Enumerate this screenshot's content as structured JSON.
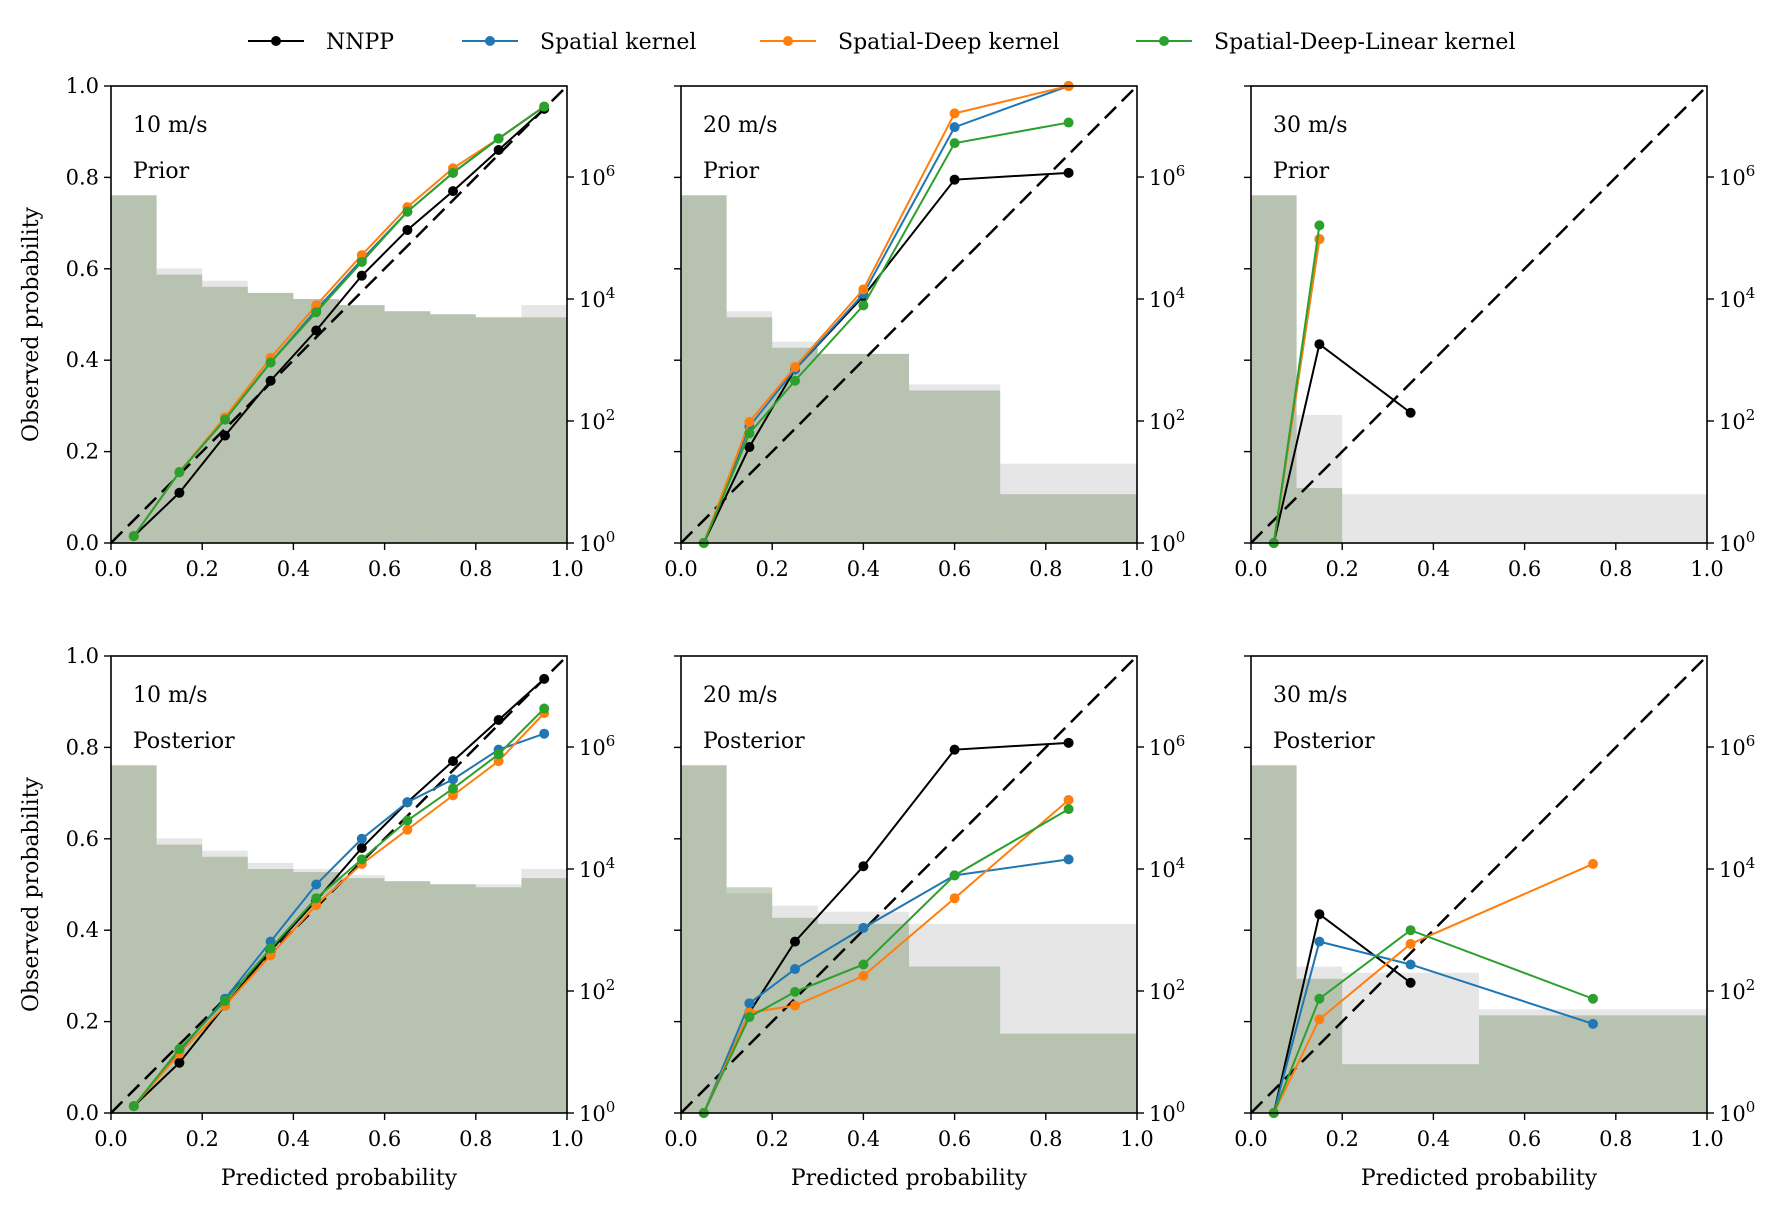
{
  "legend": {
    "entries": [
      {
        "label": "NNPP",
        "color": "#000000"
      },
      {
        "label": "Spatial kernel",
        "color": "#1f77b4"
      },
      {
        "label": "Spatial-Deep kernel",
        "color": "#ff7f0e"
      },
      {
        "label": "Spatial-Deep-Linear kernel",
        "color": "#2ca02c"
      }
    ]
  },
  "axes": {
    "xlabel": "Predicted probability",
    "ylabel": "Observed probability",
    "xticks": [
      "0.0",
      "0.2",
      "0.4",
      "0.6",
      "0.8",
      "1.0"
    ],
    "yticks": [
      "0.0",
      "0.2",
      "0.4",
      "0.6",
      "0.8",
      "1.0"
    ],
    "right_ticks": [
      "10",
      "10",
      "10",
      "10"
    ],
    "right_exps": [
      "0",
      "2",
      "4",
      "6"
    ]
  },
  "chart_data": [
    {
      "type": "line",
      "speed": "10 m/s",
      "stage": "Prior",
      "xlim": [
        0,
        1
      ],
      "ylim": [
        0,
        1
      ],
      "series": [
        {
          "name": "NNPP",
          "color": "#000000",
          "points": [
            [
              0.05,
              0.015
            ],
            [
              0.15,
              0.11
            ],
            [
              0.25,
              0.235
            ],
            [
              0.35,
              0.355
            ],
            [
              0.45,
              0.465
            ],
            [
              0.55,
              0.585
            ],
            [
              0.65,
              0.685
            ],
            [
              0.75,
              0.77
            ],
            [
              0.85,
              0.86
            ],
            [
              0.95,
              0.95
            ]
          ]
        },
        {
          "name": "Spatial kernel",
          "color": "#1f77b4",
          "points": [
            [
              0.05,
              0.015
            ],
            [
              0.15,
              0.155
            ],
            [
              0.25,
              0.27
            ],
            [
              0.35,
              0.395
            ],
            [
              0.45,
              0.51
            ],
            [
              0.55,
              0.62
            ],
            [
              0.65,
              0.725
            ],
            [
              0.75,
              0.81
            ],
            [
              0.85,
              0.885
            ],
            [
              0.95,
              0.955
            ]
          ]
        },
        {
          "name": "Spatial-Deep kernel",
          "color": "#ff7f0e",
          "points": [
            [
              0.05,
              0.015
            ],
            [
              0.15,
              0.155
            ],
            [
              0.25,
              0.275
            ],
            [
              0.35,
              0.405
            ],
            [
              0.45,
              0.52
            ],
            [
              0.55,
              0.63
            ],
            [
              0.65,
              0.735
            ],
            [
              0.75,
              0.82
            ],
            [
              0.85,
              0.885
            ],
            [
              0.95,
              0.955
            ]
          ]
        },
        {
          "name": "Spatial-Deep-Linear kernel",
          "color": "#2ca02c",
          "points": [
            [
              0.05,
              0.015
            ],
            [
              0.15,
              0.155
            ],
            [
              0.25,
              0.27
            ],
            [
              0.35,
              0.395
            ],
            [
              0.45,
              0.505
            ],
            [
              0.55,
              0.615
            ],
            [
              0.65,
              0.725
            ],
            [
              0.75,
              0.81
            ],
            [
              0.85,
              0.885
            ],
            [
              0.95,
              0.955
            ]
          ]
        }
      ],
      "histogram_log10": {
        "edges": [
          0,
          0.1,
          0.2,
          0.3,
          0.4,
          0.5,
          0.6,
          0.7,
          0.8,
          0.9,
          1.0
        ],
        "layers": [
          [
            5.7,
            4.5,
            4.3,
            4.1,
            4.0,
            3.9,
            3.8,
            3.75,
            3.7,
            3.9
          ],
          [
            5.7,
            4.4,
            4.2,
            4.1,
            4.0,
            3.9,
            3.8,
            3.75,
            3.7,
            3.7
          ]
        ]
      }
    },
    {
      "type": "line",
      "speed": "20 m/s",
      "stage": "Prior",
      "xlim": [
        0,
        1
      ],
      "ylim": [
        0,
        1
      ],
      "series": [
        {
          "name": "NNPP",
          "color": "#000000",
          "points": [
            [
              0.05,
              0.0
            ],
            [
              0.15,
              0.21
            ],
            [
              0.25,
              0.38
            ],
            [
              0.4,
              0.54
            ],
            [
              0.6,
              0.795
            ],
            [
              0.85,
              0.81
            ]
          ]
        },
        {
          "name": "Spatial kernel",
          "color": "#1f77b4",
          "points": [
            [
              0.05,
              0.0
            ],
            [
              0.15,
              0.255
            ],
            [
              0.25,
              0.38
            ],
            [
              0.4,
              0.545
            ],
            [
              0.6,
              0.91
            ],
            [
              0.85,
              1.0
            ]
          ]
        },
        {
          "name": "Spatial-Deep kernel",
          "color": "#ff7f0e",
          "points": [
            [
              0.05,
              0.0
            ],
            [
              0.15,
              0.265
            ],
            [
              0.25,
              0.385
            ],
            [
              0.4,
              0.555
            ],
            [
              0.6,
              0.94
            ],
            [
              0.85,
              1.0
            ]
          ]
        },
        {
          "name": "Spatial-Deep-Linear kernel",
          "color": "#2ca02c",
          "points": [
            [
              0.05,
              0.0
            ],
            [
              0.15,
              0.24
            ],
            [
              0.25,
              0.355
            ],
            [
              0.4,
              0.52
            ],
            [
              0.6,
              0.875
            ],
            [
              0.85,
              0.92
            ]
          ]
        }
      ],
      "histogram_log10": {
        "edges": [
          0,
          0.1,
          0.2,
          0.3,
          0.5,
          0.7,
          1.0
        ],
        "layers": [
          [
            5.7,
            3.8,
            3.3,
            3.1,
            2.6,
            1.3
          ],
          [
            5.7,
            3.7,
            3.2,
            3.1,
            2.5,
            0.8
          ]
        ]
      }
    },
    {
      "type": "line",
      "speed": "30 m/s",
      "stage": "Prior",
      "xlim": [
        0,
        1
      ],
      "ylim": [
        0,
        1
      ],
      "series": [
        {
          "name": "NNPP",
          "color": "#000000",
          "points": [
            [
              0.05,
              0.0
            ],
            [
              0.15,
              0.435
            ],
            [
              0.35,
              0.285
            ]
          ]
        },
        {
          "name": "Spatial kernel",
          "color": "#1f77b4",
          "points": [
            [
              0.05,
              0.0
            ],
            [
              0.15,
              0.665
            ]
          ]
        },
        {
          "name": "Spatial-Deep kernel",
          "color": "#ff7f0e",
          "points": [
            [
              0.05,
              0.0
            ],
            [
              0.15,
              0.665
            ]
          ]
        },
        {
          "name": "Spatial-Deep-Linear kernel",
          "color": "#2ca02c",
          "points": [
            [
              0.05,
              0.0
            ],
            [
              0.15,
              0.695
            ]
          ]
        }
      ],
      "histogram_log10": {
        "edges": [
          0,
          0.1,
          0.2,
          0.5,
          1.0
        ],
        "layers": [
          [
            5.7,
            2.1,
            0.8,
            0.8
          ],
          [
            5.7,
            0.9,
            0,
            0
          ]
        ]
      }
    },
    {
      "type": "line",
      "speed": "10 m/s",
      "stage": "Posterior",
      "xlim": [
        0,
        1
      ],
      "ylim": [
        0,
        1
      ],
      "series": [
        {
          "name": "NNPP",
          "color": "#000000",
          "points": [
            [
              0.05,
              0.015
            ],
            [
              0.15,
              0.11
            ],
            [
              0.25,
              0.235
            ],
            [
              0.35,
              0.355
            ],
            [
              0.45,
              0.465
            ],
            [
              0.55,
              0.58
            ],
            [
              0.65,
              0.68
            ],
            [
              0.75,
              0.77
            ],
            [
              0.85,
              0.86
            ],
            [
              0.95,
              0.95
            ]
          ]
        },
        {
          "name": "Spatial kernel",
          "color": "#1f77b4",
          "points": [
            [
              0.05,
              0.015
            ],
            [
              0.15,
              0.135
            ],
            [
              0.25,
              0.25
            ],
            [
              0.35,
              0.375
            ],
            [
              0.45,
              0.5
            ],
            [
              0.55,
              0.6
            ],
            [
              0.65,
              0.68
            ],
            [
              0.75,
              0.73
            ],
            [
              0.85,
              0.795
            ],
            [
              0.95,
              0.83
            ]
          ]
        },
        {
          "name": "Spatial-Deep kernel",
          "color": "#ff7f0e",
          "points": [
            [
              0.05,
              0.015
            ],
            [
              0.15,
              0.13
            ],
            [
              0.25,
              0.235
            ],
            [
              0.35,
              0.345
            ],
            [
              0.45,
              0.455
            ],
            [
              0.55,
              0.545
            ],
            [
              0.65,
              0.62
            ],
            [
              0.75,
              0.695
            ],
            [
              0.85,
              0.77
            ],
            [
              0.95,
              0.875
            ]
          ]
        },
        {
          "name": "Spatial-Deep-Linear kernel",
          "color": "#2ca02c",
          "points": [
            [
              0.05,
              0.015
            ],
            [
              0.15,
              0.14
            ],
            [
              0.25,
              0.245
            ],
            [
              0.35,
              0.36
            ],
            [
              0.45,
              0.47
            ],
            [
              0.55,
              0.555
            ],
            [
              0.65,
              0.64
            ],
            [
              0.75,
              0.71
            ],
            [
              0.85,
              0.785
            ],
            [
              0.95,
              0.885
            ]
          ]
        }
      ],
      "histogram_log10": {
        "edges": [
          0,
          0.1,
          0.2,
          0.3,
          0.4,
          0.5,
          0.6,
          0.7,
          0.8,
          0.9,
          1.0
        ],
        "layers": [
          [
            5.7,
            4.5,
            4.3,
            4.1,
            4.0,
            3.9,
            3.8,
            3.75,
            3.75,
            4.0
          ],
          [
            5.7,
            4.4,
            4.2,
            4.0,
            3.95,
            3.85,
            3.8,
            3.75,
            3.7,
            3.85
          ]
        ]
      }
    },
    {
      "type": "line",
      "speed": "20 m/s",
      "stage": "Posterior",
      "xlim": [
        0,
        1
      ],
      "ylim": [
        0,
        1
      ],
      "series": [
        {
          "name": "NNPP",
          "color": "#000000",
          "points": [
            [
              0.05,
              0.0
            ],
            [
              0.15,
              0.22
            ],
            [
              0.25,
              0.375
            ],
            [
              0.4,
              0.54
            ],
            [
              0.6,
              0.795
            ],
            [
              0.85,
              0.81
            ]
          ]
        },
        {
          "name": "Spatial kernel",
          "color": "#1f77b4",
          "points": [
            [
              0.05,
              0.0
            ],
            [
              0.15,
              0.24
            ],
            [
              0.25,
              0.315
            ],
            [
              0.4,
              0.405
            ],
            [
              0.6,
              0.52
            ],
            [
              0.85,
              0.555
            ]
          ]
        },
        {
          "name": "Spatial-Deep kernel",
          "color": "#ff7f0e",
          "points": [
            [
              0.05,
              0.0
            ],
            [
              0.15,
              0.22
            ],
            [
              0.25,
              0.235
            ],
            [
              0.4,
              0.3
            ],
            [
              0.6,
              0.47
            ],
            [
              0.85,
              0.685
            ]
          ]
        },
        {
          "name": "Spatial-Deep-Linear kernel",
          "color": "#2ca02c",
          "points": [
            [
              0.05,
              0.0
            ],
            [
              0.15,
              0.21
            ],
            [
              0.25,
              0.265
            ],
            [
              0.4,
              0.325
            ],
            [
              0.6,
              0.52
            ],
            [
              0.85,
              0.665
            ]
          ]
        }
      ],
      "histogram_log10": {
        "edges": [
          0,
          0.1,
          0.2,
          0.3,
          0.5,
          0.7,
          1.0
        ],
        "layers": [
          [
            5.7,
            3.6,
            3.4,
            3.3,
            3.1,
            3.1
          ],
          [
            5.7,
            3.7,
            3.2,
            3.1,
            2.4,
            1.3
          ]
        ]
      }
    },
    {
      "type": "line",
      "speed": "30 m/s",
      "stage": "Posterior",
      "xlim": [
        0,
        1
      ],
      "ylim": [
        0,
        1
      ],
      "series": [
        {
          "name": "NNPP",
          "color": "#000000",
          "points": [
            [
              0.05,
              0.0
            ],
            [
              0.15,
              0.435
            ],
            [
              0.35,
              0.285
            ]
          ]
        },
        {
          "name": "Spatial kernel",
          "color": "#1f77b4",
          "points": [
            [
              0.05,
              0.0
            ],
            [
              0.15,
              0.375
            ],
            [
              0.35,
              0.325
            ],
            [
              0.75,
              0.195
            ]
          ]
        },
        {
          "name": "Spatial-Deep kernel",
          "color": "#ff7f0e",
          "points": [
            [
              0.05,
              0.0
            ],
            [
              0.15,
              0.205
            ],
            [
              0.35,
              0.37
            ],
            [
              0.75,
              0.545
            ]
          ]
        },
        {
          "name": "Spatial-Deep-Linear kernel",
          "color": "#2ca02c",
          "points": [
            [
              0.05,
              0.0
            ],
            [
              0.15,
              0.25
            ],
            [
              0.35,
              0.4
            ],
            [
              0.75,
              0.25
            ]
          ]
        }
      ],
      "histogram_log10": {
        "edges": [
          0,
          0.1,
          0.2,
          0.5,
          1.0
        ],
        "layers": [
          [
            5.7,
            2.4,
            2.3,
            1.7
          ],
          [
            5.7,
            2.2,
            0.8,
            1.6
          ]
        ]
      }
    }
  ]
}
